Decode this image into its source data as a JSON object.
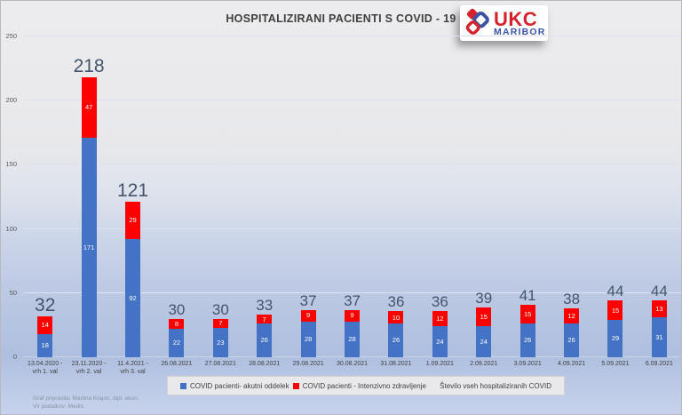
{
  "title": "HOSPITALIZIRANI PACIENTI S COVID - 19",
  "logo": {
    "line1": "UKC",
    "line2": "MARIBOR",
    "ukc_color": "#d6222c",
    "maribor_color": "#3a53a4"
  },
  "legend": [
    {
      "label": "COVID pacienti- akutni oddelek",
      "color": "#4472c4"
    },
    {
      "label": "COVID pacienti - Intenzivno zdravljenje",
      "color": "#fe0000"
    },
    {
      "label": "Število vseh hospitaliziranih COVID",
      "color": null
    }
  ],
  "footer": {
    "line1": "Graf pripravila: Martina Krajnc, dipl. ekon.",
    "line2": "Vir podatkov: Medis"
  },
  "chart_data": {
    "type": "bar",
    "stacked": true,
    "title": "HOSPITALIZIRANI PACIENTI S COVID - 19",
    "categories": [
      "13.04.2020 -\nvrh 1. val",
      "23.11.2020 -\nvrh 2. val",
      "11.4.2021 -\nvrh 3. val",
      "26.08.2021",
      "27.08.2021",
      "28.08.2021",
      "29.08.2021",
      "30.08.2021",
      "31.08.2021",
      "1.09.2021",
      "2.09.2021",
      "3.09.2021",
      "4.09.2021",
      "5.09.2021",
      "6.09.2021"
    ],
    "series": [
      {
        "name": "COVID pacienti- akutni oddelek",
        "color": "#4472c4",
        "values": [
          18,
          171,
          92,
          22,
          23,
          26,
          28,
          28,
          26,
          24,
          24,
          26,
          26,
          29,
          31
        ]
      },
      {
        "name": "COVID pacienti - Intenzivno zdravljenje",
        "color": "#fe0000",
        "values": [
          14,
          47,
          29,
          8,
          7,
          7,
          9,
          9,
          10,
          12,
          15,
          15,
          12,
          15,
          13
        ]
      }
    ],
    "totals": [
      32,
      218,
      121,
      30,
      30,
      33,
      37,
      37,
      36,
      36,
      39,
      41,
      38,
      44,
      44
    ],
    "total_label_color": "#44546a",
    "ylim": [
      0,
      250
    ],
    "yticks": [
      0,
      50,
      100,
      150,
      200,
      250
    ],
    "grid": true,
    "legend_position": "bottom"
  }
}
